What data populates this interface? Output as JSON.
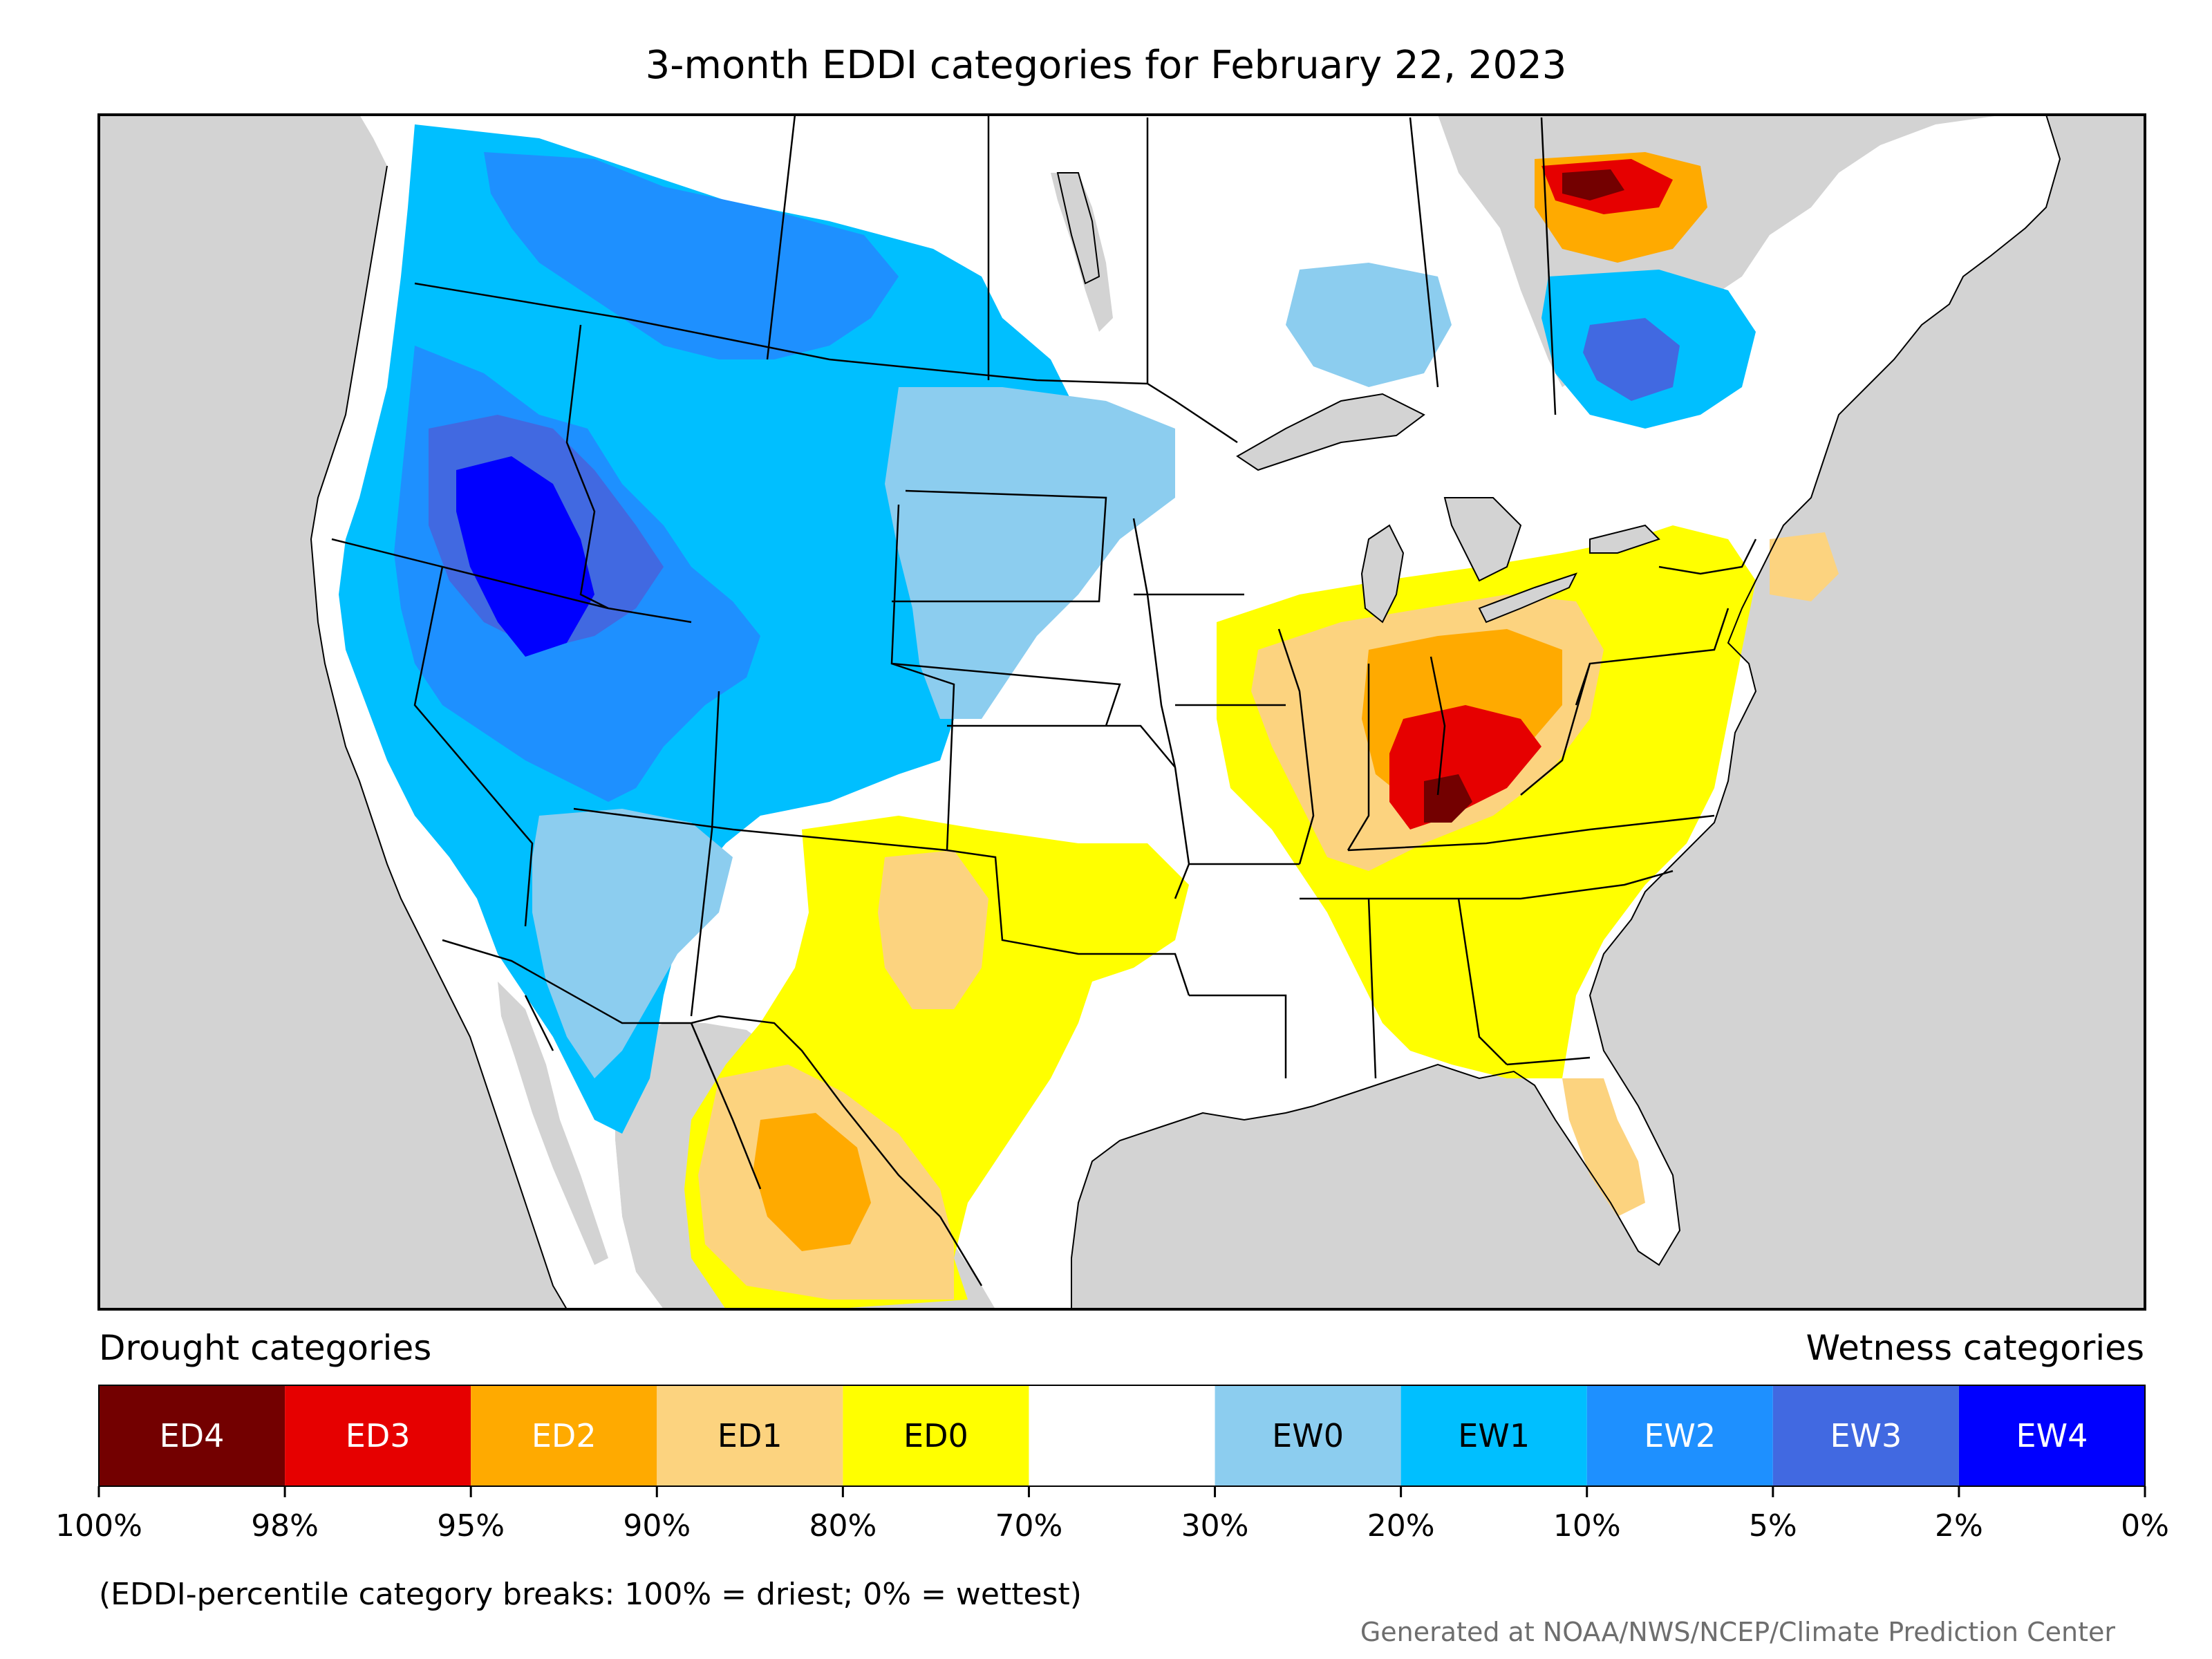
{
  "title": "3-month EDDI categories for February 22, 2023",
  "legend": {
    "drought_heading": "Drought categories",
    "wetness_heading": "Wetness categories",
    "categories": [
      {
        "label": "ED4",
        "color": "#730000",
        "text_color": "#ffffff"
      },
      {
        "label": "ED3",
        "color": "#e60000",
        "text_color": "#ffffff"
      },
      {
        "label": "ED2",
        "color": "#ffaa00",
        "text_color": "#ffffff"
      },
      {
        "label": "ED1",
        "color": "#fcd37f",
        "text_color": "#000000"
      },
      {
        "label": "ED0",
        "color": "#ffff00",
        "text_color": "#000000"
      },
      {
        "label": "",
        "color": "#ffffff",
        "text_color": "#000000"
      },
      {
        "label": "EW0",
        "color": "#8ccdef",
        "text_color": "#000000"
      },
      {
        "label": "EW1",
        "color": "#00bfff",
        "text_color": "#000000"
      },
      {
        "label": "EW2",
        "color": "#1e90ff",
        "text_color": "#ffffff"
      },
      {
        "label": "EW3",
        "color": "#4169e1",
        "text_color": "#ffffff"
      },
      {
        "label": "EW4",
        "color": "#0000ff",
        "text_color": "#ffffff"
      }
    ],
    "ticks": [
      "100%",
      "98%",
      "95%",
      "90%",
      "80%",
      "70%",
      "30%",
      "20%",
      "10%",
      "5%",
      "2%",
      "0%"
    ]
  },
  "note": "(EDDI-percentile category breaks: 100% = driest; 0% = wettest)",
  "credit": "Generated at NOAA/NWS/NCEP/Climate Prediction Center",
  "colors": {
    "land_outside": "#d3d3d3",
    "no_category": "#ffffff",
    "border": "#000000"
  }
}
